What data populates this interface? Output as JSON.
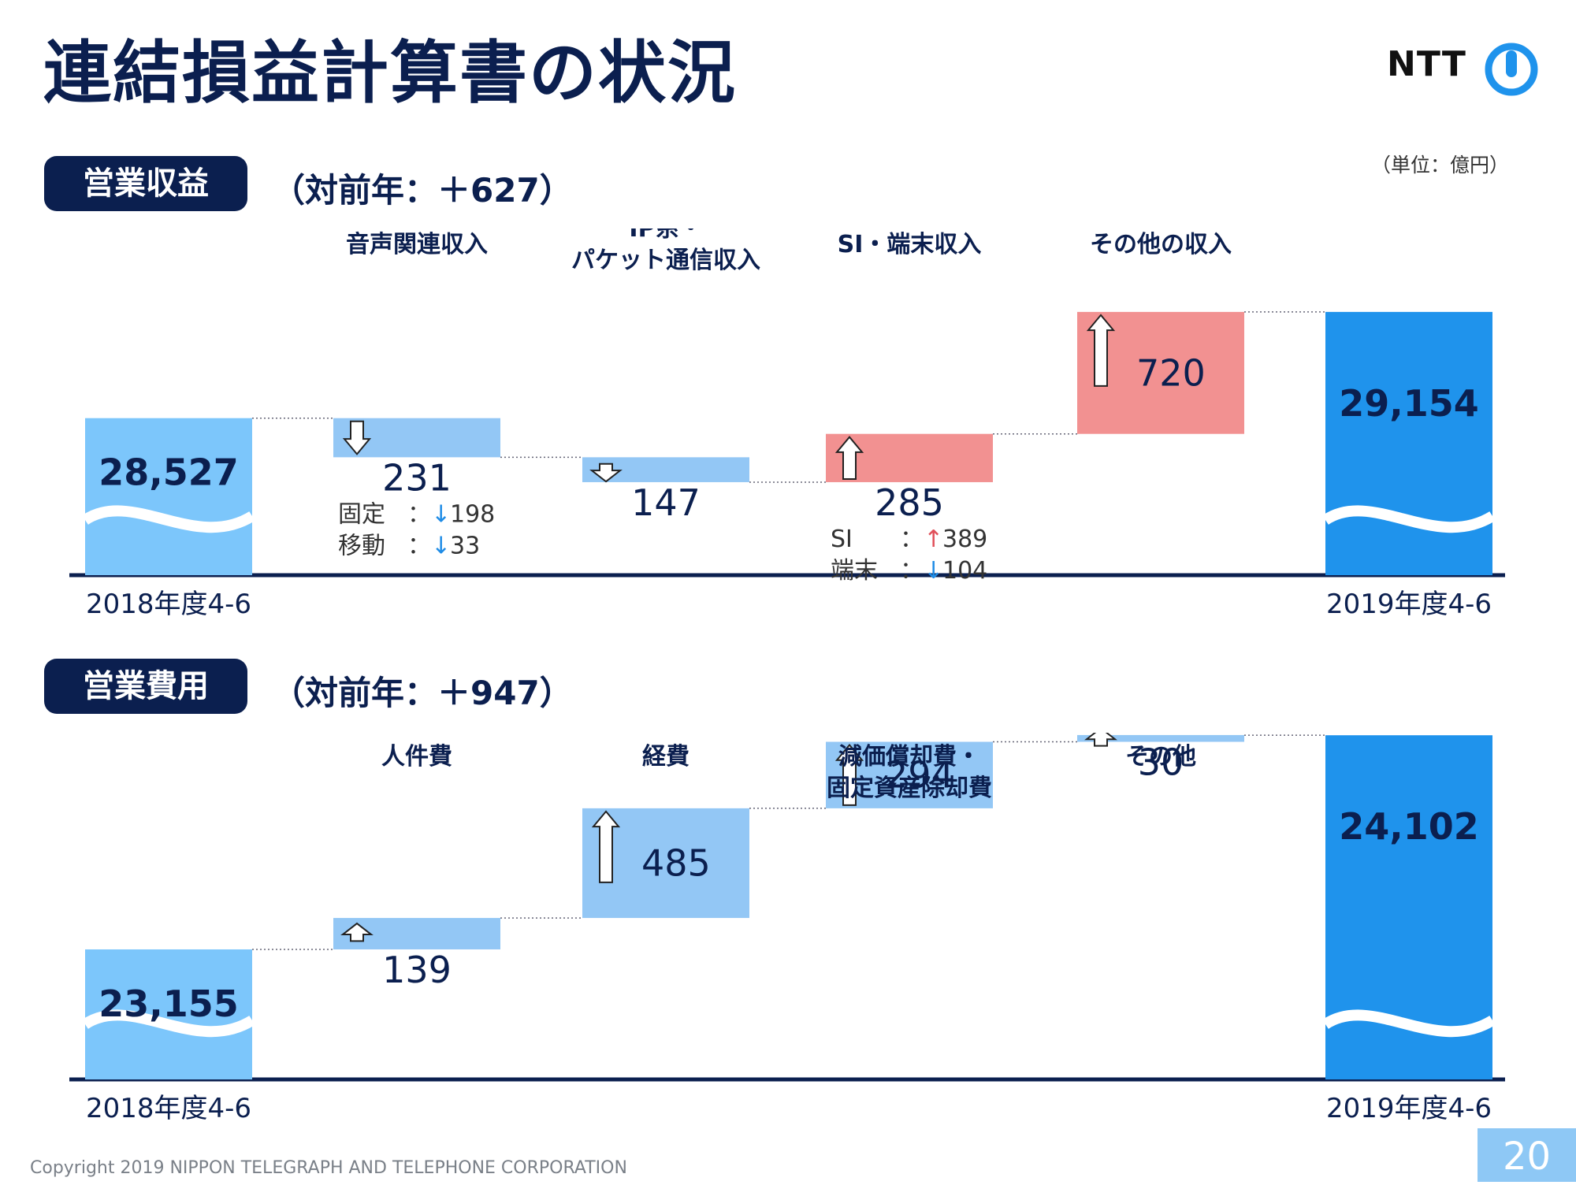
{
  "title": "連結損益計算書の状況",
  "logo": {
    "text": "NTT"
  },
  "unit": "（単位：億円）",
  "copyright": "Copyright 2019 NIPPON TELEGRAPH AND TELEPHONE CORPORATION",
  "page_number": "20",
  "colors": {
    "navy": "#0b1f4f",
    "base_light": "#7cc6fb",
    "base_dark": "#1f93ec",
    "decrease": "#93c7f5",
    "increase": "#f29191",
    "up_arrow_red": "#e0505a",
    "down_arrow_blue": "#1f8ce6"
  },
  "chart_data": [
    {
      "type": "waterfall",
      "section_label": "営業収益",
      "yoy_text": "（対前年：＋627）",
      "start": {
        "label": "2018年度4-6",
        "value": 28527,
        "value_label": "28,527"
      },
      "end": {
        "label": "2019年度4-6",
        "value": 29154,
        "value_label": "29,154"
      },
      "steps": [
        {
          "category": "音声関連収入",
          "delta": -231,
          "value_label": "231",
          "details": [
            {
              "label": "固定",
              "dir": "down",
              "value": "198"
            },
            {
              "label": "移動",
              "dir": "down",
              "value": "33"
            }
          ]
        },
        {
          "category": "IP系・\nパケット通信収入",
          "delta": -147,
          "value_label": "147",
          "details": []
        },
        {
          "category": "SI・端末収入",
          "delta": 285,
          "value_label": "285",
          "details": [
            {
              "label": "SI",
              "dir": "up",
              "value": "389"
            },
            {
              "label": "端末",
              "dir": "down",
              "value": "104"
            }
          ]
        },
        {
          "category": "その他の収入",
          "delta": 720,
          "value_label": "720",
          "details": []
        }
      ]
    },
    {
      "type": "waterfall",
      "section_label": "営業費用",
      "yoy_text": "（対前年：＋947）",
      "start": {
        "label": "2018年度4-6",
        "value": 23155,
        "value_label": "23,155"
      },
      "end": {
        "label": "2019年度4-6",
        "value": 24102,
        "value_label": "24,102"
      },
      "steps": [
        {
          "category": "人件費",
          "delta": 139,
          "value_label": "139",
          "details": []
        },
        {
          "category": "経費",
          "delta": 485,
          "value_label": "485",
          "details": []
        },
        {
          "category": "減価償却費・\n固定資産除却費",
          "delta": 294,
          "value_label": "294",
          "details": []
        },
        {
          "category": "その他",
          "delta": 30,
          "value_label": "30",
          "details": []
        }
      ]
    }
  ]
}
